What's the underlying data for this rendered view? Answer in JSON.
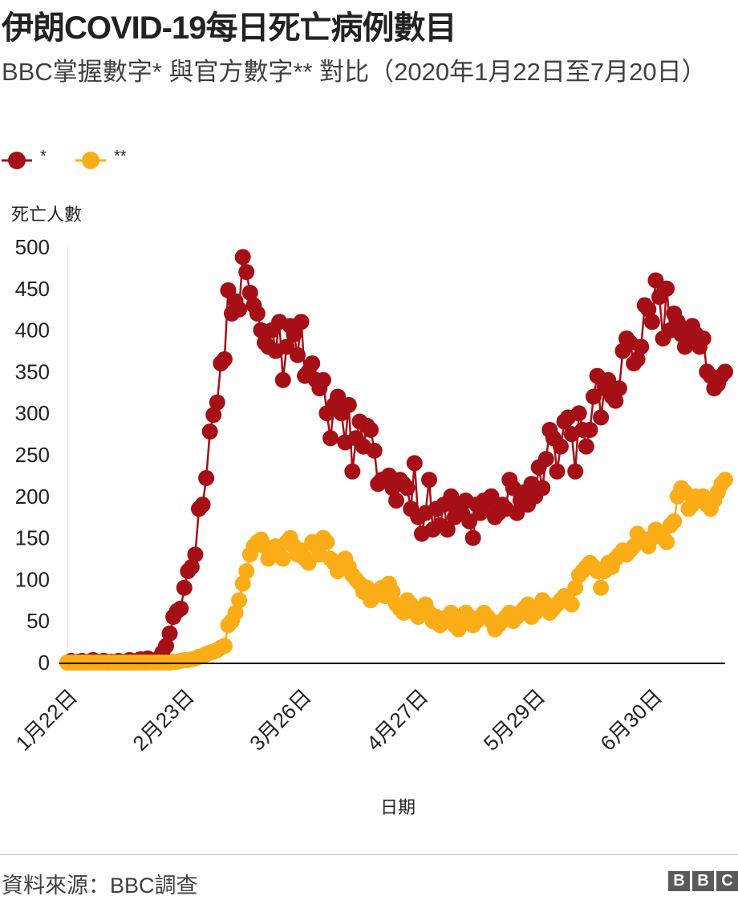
{
  "title": "伊朗COVID-19每日死亡病例數目",
  "subtitle": "BBC掌握數字* 與官方數字** 對比（2020年1月22日至7月20日）",
  "source": "資料來源：BBC調查",
  "logo": [
    "B",
    "B",
    "C"
  ],
  "colors": {
    "series_bbc": "#a50f15",
    "series_official": "#fbad17",
    "axis": "#000000",
    "grid": "#d9d9d9"
  },
  "chart_data": {
    "type": "line",
    "ylabel": "死亡人數",
    "xlabel": "日期",
    "ylim": [
      0,
      500
    ],
    "yticks": [
      0,
      50,
      100,
      150,
      200,
      250,
      300,
      350,
      400,
      450,
      500
    ],
    "x_start": "1月22日",
    "x_end": "7月20日",
    "num_days": 181,
    "xticks": [
      {
        "day": 0,
        "label": "1月22日"
      },
      {
        "day": 32,
        "label": "2月23日"
      },
      {
        "day": 64,
        "label": "3月26日"
      },
      {
        "day": 96,
        "label": "4月27日"
      },
      {
        "day": 128,
        "label": "5月29日"
      },
      {
        "day": 160,
        "label": "6月30日"
      }
    ],
    "legend_position": "top-left",
    "series": [
      {
        "name": "*",
        "color": "#a50f15",
        "values": [
          0,
          2,
          0,
          1,
          2,
          0,
          1,
          3,
          0,
          1,
          2,
          0,
          1,
          0,
          2,
          1,
          0,
          3,
          0,
          2,
          4,
          0,
          5,
          2,
          1,
          5,
          12,
          20,
          35,
          55,
          62,
          65,
          90,
          110,
          115,
          130,
          185,
          190,
          222,
          278,
          298,
          313,
          360,
          365,
          448,
          420,
          435,
          425,
          488,
          470,
          445,
          430,
          420,
          400,
          385,
          380,
          400,
          375,
          410,
          340,
          380,
          405,
          395,
          370,
          410,
          345,
          350,
          360,
          340,
          330,
          340,
          300,
          270,
          310,
          320,
          300,
          265,
          310,
          230,
          270,
          290,
          260,
          285,
          280,
          255,
          215,
          220,
          220,
          225,
          210,
          195,
          220,
          215,
          210,
          185,
          240,
          175,
          155,
          180,
          220,
          160,
          185,
          165,
          190,
          160,
          200,
          175,
          185,
          180,
          195,
          170,
          150,
          190,
          180,
          195,
          185,
          200,
          175,
          180,
          190,
          185,
          220,
          210,
          180,
          195,
          205,
          190,
          215,
          200,
          235,
          210,
          245,
          280,
          270,
          230,
          260,
          290,
          295,
          275,
          230,
          300,
          280,
          260,
          280,
          320,
          345,
          295,
          330,
          340,
          320,
          315,
          330,
          375,
          390,
          385,
          360,
          365,
          380,
          430,
          425,
          410,
          460,
          440,
          390,
          450,
          400,
          420,
          410,
          395,
          380,
          390,
          405,
          395,
          380,
          390,
          350,
          345,
          330,
          335,
          345,
          350
        ]
      },
      {
        "name": "**",
        "color": "#fbad17",
        "values": [
          0,
          0,
          0,
          0,
          0,
          0,
          0,
          0,
          0,
          0,
          0,
          0,
          0,
          0,
          0,
          0,
          0,
          0,
          0,
          0,
          0,
          0,
          0,
          0,
          0,
          0,
          0,
          0,
          0,
          1,
          1,
          2,
          3,
          3,
          4,
          5,
          7,
          8,
          10,
          12,
          13,
          15,
          18,
          20,
          45,
          50,
          60,
          75,
          95,
          110,
          130,
          140,
          145,
          148,
          140,
          125,
          130,
          140,
          130,
          125,
          145,
          150,
          140,
          130,
          135,
          125,
          120,
          145,
          140,
          130,
          150,
          145,
          125,
          120,
          110,
          115,
          125,
          115,
          105,
          100,
          95,
          85,
          90,
          75,
          80,
          85,
          90,
          80,
          95,
          85,
          70,
          65,
          60,
          75,
          70,
          60,
          55,
          65,
          70,
          60,
          50,
          55,
          45,
          50,
          55,
          60,
          45,
          40,
          50,
          60,
          55,
          45,
          50,
          55,
          60,
          55,
          50,
          40,
          45,
          50,
          55,
          60,
          50,
          55,
          60,
          65,
          70,
          55,
          60,
          65,
          75,
          70,
          60,
          65,
          70,
          75,
          80,
          75,
          70,
          90,
          105,
          110,
          115,
          120,
          115,
          110,
          90,
          110,
          120,
          115,
          125,
          130,
          135,
          130,
          135,
          140,
          155,
          150,
          145,
          140,
          150,
          160,
          155,
          150,
          145,
          165,
          170,
          200,
          210,
          205,
          185,
          190,
          200,
          195,
          200,
          190,
          185,
          195,
          205,
          215,
          220
        ]
      }
    ]
  }
}
